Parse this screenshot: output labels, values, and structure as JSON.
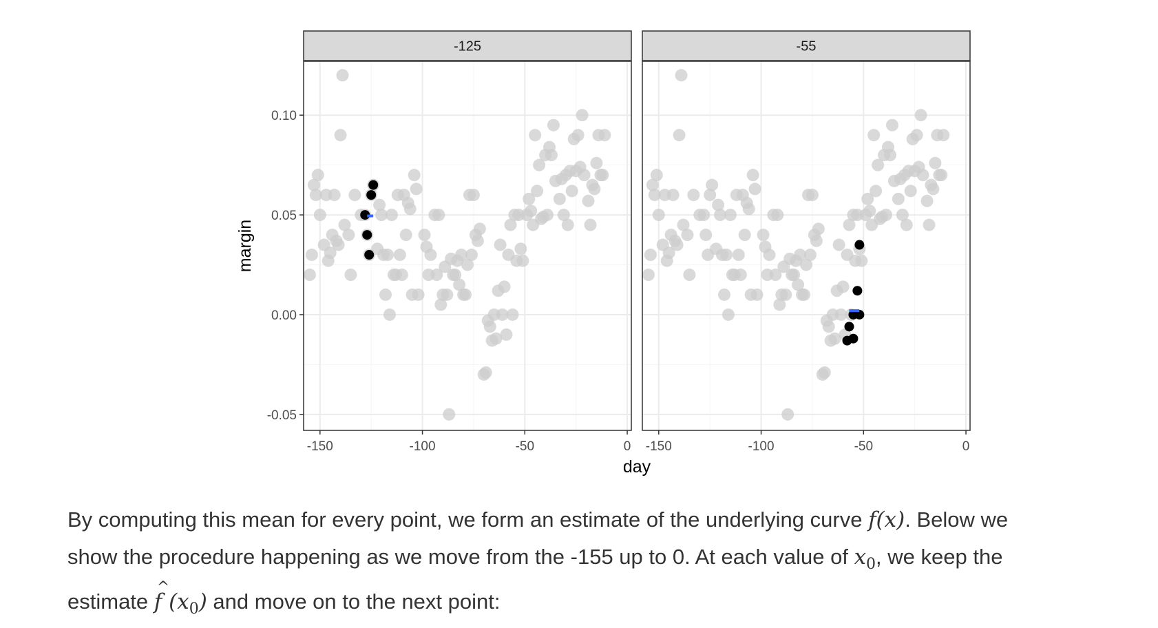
{
  "chart_data": {
    "type": "scatter",
    "xlabel": "day",
    "ylabel": "margin",
    "xlim": [
      -158,
      2
    ],
    "ylim": [
      -0.058,
      0.127
    ],
    "x_ticks": [
      -150,
      -100,
      -50,
      0
    ],
    "x_tick_labels": [
      "-150",
      "-100",
      "-50",
      "0"
    ],
    "y_ticks": [
      -0.05,
      0.0,
      0.05,
      0.1
    ],
    "y_tick_labels": [
      "-0.05",
      "0.00",
      "0.05",
      "0.10"
    ],
    "grid": true,
    "colors": {
      "background_points": "#cccccc",
      "window_points": "#000000",
      "estimate": "#3366ff",
      "strip": "#d9d9d9",
      "grid_major": "#ebebeb",
      "grid_minor": "#f5f5f5"
    },
    "points": [
      [
        -155,
        0.02
      ],
      [
        -154,
        0.03
      ],
      [
        -153,
        0.065
      ],
      [
        -152,
        0.06
      ],
      [
        -151,
        0.07
      ],
      [
        -150,
        0.05
      ],
      [
        -148,
        0.035
      ],
      [
        -147,
        0.06
      ],
      [
        -146,
        0.027
      ],
      [
        -145,
        0.031
      ],
      [
        -144,
        0.04
      ],
      [
        -143,
        0.06
      ],
      [
        -142,
        0.037
      ],
      [
        -141,
        0.035
      ],
      [
        -139,
        0.12
      ],
      [
        -140,
        0.09
      ],
      [
        -138,
        0.045
      ],
      [
        -136,
        0.04
      ],
      [
        -135,
        0.02
      ],
      [
        -133,
        0.06
      ],
      [
        -130,
        0.05
      ],
      [
        -128,
        0.05
      ],
      [
        -127,
        0.04
      ],
      [
        -126,
        0.03
      ],
      [
        -125,
        0.06
      ],
      [
        -124,
        0.065
      ],
      [
        -122,
        0.033
      ],
      [
        -121,
        0.055
      ],
      [
        -120,
        0.05
      ],
      [
        -119,
        0.03
      ],
      [
        -118,
        0.01
      ],
      [
        -117,
        0.03
      ],
      [
        -116,
        0.0
      ],
      [
        -115,
        0.05
      ],
      [
        -114,
        0.02
      ],
      [
        -113,
        0.02
      ],
      [
        -112,
        0.06
      ],
      [
        -111,
        0.03
      ],
      [
        -110,
        0.02
      ],
      [
        -109,
        0.06
      ],
      [
        -108,
        0.04
      ],
      [
        -107,
        0.056
      ],
      [
        -106,
        0.053
      ],
      [
        -105,
        0.01
      ],
      [
        -104,
        0.07
      ],
      [
        -103,
        0.063
      ],
      [
        -102,
        0.01
      ],
      [
        -99,
        0.04
      ],
      [
        -98,
        0.034
      ],
      [
        -97,
        0.02
      ],
      [
        -96,
        0.03
      ],
      [
        -94,
        0.05
      ],
      [
        -93,
        0.02
      ],
      [
        -92,
        0.05
      ],
      [
        -91,
        0.005
      ],
      [
        -90,
        0.01
      ],
      [
        -89,
        0.024
      ],
      [
        -88,
        0.01
      ],
      [
        -87,
        -0.05
      ],
      [
        -86,
        0.028
      ],
      [
        -85,
        0.02
      ],
      [
        -84,
        0.02
      ],
      [
        -83,
        0.027
      ],
      [
        -82,
        0.015
      ],
      [
        -81,
        0.03
      ],
      [
        -80,
        0.01
      ],
      [
        -79,
        0.01
      ],
      [
        -78,
        0.025
      ],
      [
        -77,
        0.06
      ],
      [
        -76,
        0.03
      ],
      [
        -75,
        0.06
      ],
      [
        -74,
        0.04
      ],
      [
        -73,
        0.037
      ],
      [
        -72,
        0.043
      ],
      [
        -70,
        -0.03
      ],
      [
        -69,
        -0.029
      ],
      [
        -68,
        -0.003
      ],
      [
        -67,
        -0.006
      ],
      [
        -66,
        -0.013
      ],
      [
        -65,
        0.0
      ],
      [
        -64,
        -0.012
      ],
      [
        -63,
        0.012
      ],
      [
        -62,
        0.035
      ],
      [
        -61,
        0.0
      ],
      [
        -60,
        0.014
      ],
      [
        -59,
        -0.01
      ],
      [
        -58,
        0.03
      ],
      [
        -57,
        0.045
      ],
      [
        -56,
        0.0
      ],
      [
        -55,
        0.05
      ],
      [
        -54,
        0.027
      ],
      [
        -53,
        0.05
      ],
      [
        -52,
        0.033
      ],
      [
        -51,
        0.027
      ],
      [
        -49,
        0.05
      ],
      [
        -48,
        0.058
      ],
      [
        -47,
        0.052
      ],
      [
        -46,
        0.045
      ],
      [
        -45,
        0.09
      ],
      [
        -44,
        0.062
      ],
      [
        -43,
        0.075
      ],
      [
        -42,
        0.048
      ],
      [
        -41,
        0.049
      ],
      [
        -40,
        0.08
      ],
      [
        -39,
        0.05
      ],
      [
        -38,
        0.084
      ],
      [
        -37,
        0.08
      ],
      [
        -36,
        0.095
      ],
      [
        -35,
        0.067
      ],
      [
        -33,
        0.058
      ],
      [
        -32,
        0.068
      ],
      [
        -31,
        0.05
      ],
      [
        -30,
        0.07
      ],
      [
        -29,
        0.045
      ],
      [
        -28,
        0.072
      ],
      [
        -27,
        0.062
      ],
      [
        -26,
        0.088
      ],
      [
        -25,
        0.072
      ],
      [
        -24,
        0.09
      ],
      [
        -23,
        0.074
      ],
      [
        -22,
        0.1
      ],
      [
        -21,
        0.07
      ],
      [
        -19,
        0.057
      ],
      [
        -18,
        0.045
      ],
      [
        -17,
        0.065
      ],
      [
        -16,
        0.063
      ],
      [
        -15,
        0.076
      ],
      [
        -14,
        0.09
      ],
      [
        -13,
        0.07
      ],
      [
        -12,
        0.07
      ],
      [
        -11,
        0.09
      ]
    ],
    "panels": [
      {
        "strip": "-125",
        "window_points": [
          [
            -124,
            0.065
          ],
          [
            -125,
            0.06
          ],
          [
            -128,
            0.05
          ],
          [
            -127,
            0.04
          ],
          [
            -126,
            0.03
          ]
        ],
        "estimate": {
          "x": [
            -127,
            -124
          ],
          "y": 0.0495
        }
      },
      {
        "strip": "-55",
        "window_points": [
          [
            -52,
            0.035
          ],
          [
            -53,
            0.012
          ],
          [
            -55,
            0.0
          ],
          [
            -52,
            0.0
          ],
          [
            -57,
            -0.006
          ],
          [
            -58,
            -0.013
          ],
          [
            -55,
            -0.012
          ]
        ],
        "estimate": {
          "x": [
            -57,
            -52
          ],
          "y": 0.002
        }
      }
    ]
  },
  "caption": {
    "l1_a": "By computing this mean for every point, we form an estimate of the underlying curve ",
    "l1_math": "f(x)",
    "l1_b": ". Below we",
    "l2_a": "show the procedure happening as we move from the -155 up to 0. At each value of ",
    "l2_var": "x",
    "l2_sub": "0",
    "l2_b": ", we keep the",
    "l3_a": "estimate ",
    "l3_f": "f",
    "l3_open": " (",
    "l3_var": "x",
    "l3_sub": "0",
    "l3_close": ")",
    "l3_b": " and move on to the next point:"
  }
}
